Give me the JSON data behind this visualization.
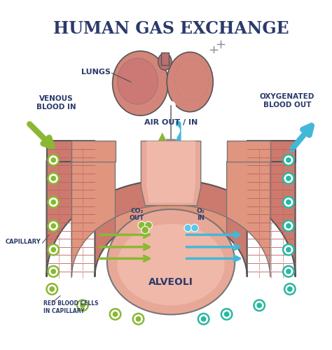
{
  "title": "HUMAN GAS EXCHANGE",
  "title_color": "#2b3a6b",
  "title_fontsize": 17,
  "bg_color": "#ffffff",
  "lung_fill": "#d4857a",
  "lung_edge": "#555555",
  "alv_wall": "#cc7a6e",
  "alv_inner": "#e0957e",
  "alv_sac": "#e8a898",
  "alv_sac_inner": "#f0b8a8",
  "green": "#8ab832",
  "blue": "#42b8d8",
  "teal": "#2ab8a0",
  "text_dark": "#2b3a6b",
  "labels_lungs": "LUNGS",
  "labels_air": "AIR OUT / IN",
  "labels_venous": "VENOUS\nBLOOD IN",
  "labels_oxy": "OXYGENATED\nBLOOD OUT",
  "labels_co2": "CO₂\nOUT",
  "labels_o2": "O₂\nIN",
  "labels_alveoli": "ALVEOLI",
  "labels_cap": "CAPILLARY",
  "labels_rbc": "RED BLOOD CELLS\nIN CAPILLARY"
}
